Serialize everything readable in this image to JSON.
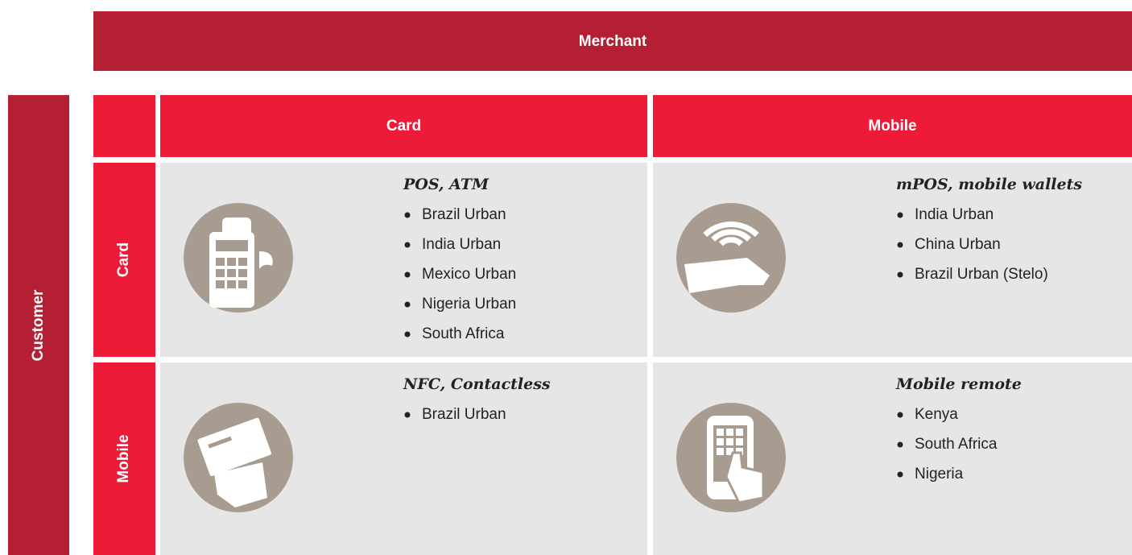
{
  "header": {
    "merchant": "Merchant",
    "customer": "Customer"
  },
  "columns": [
    "Card",
    "Mobile"
  ],
  "rows": [
    "Card",
    "Mobile"
  ],
  "cells": [
    [
      {
        "title": "POS, ATM",
        "items": [
          "Brazil Urban",
          "India Urban",
          "Mexico Urban",
          "Nigeria Urban",
          "South Africa"
        ]
      },
      {
        "title": "mPOS, mobile wallets",
        "items": [
          "India Urban",
          "China Urban",
          "Brazil Urban (Stelo)"
        ]
      }
    ],
    [
      {
        "title": "NFC, Contactless",
        "items": [
          "Brazil Urban"
        ]
      },
      {
        "title": "Mobile remote",
        "items": [
          "Kenya",
          "South Africa",
          "Nigeria"
        ]
      }
    ]
  ]
}
